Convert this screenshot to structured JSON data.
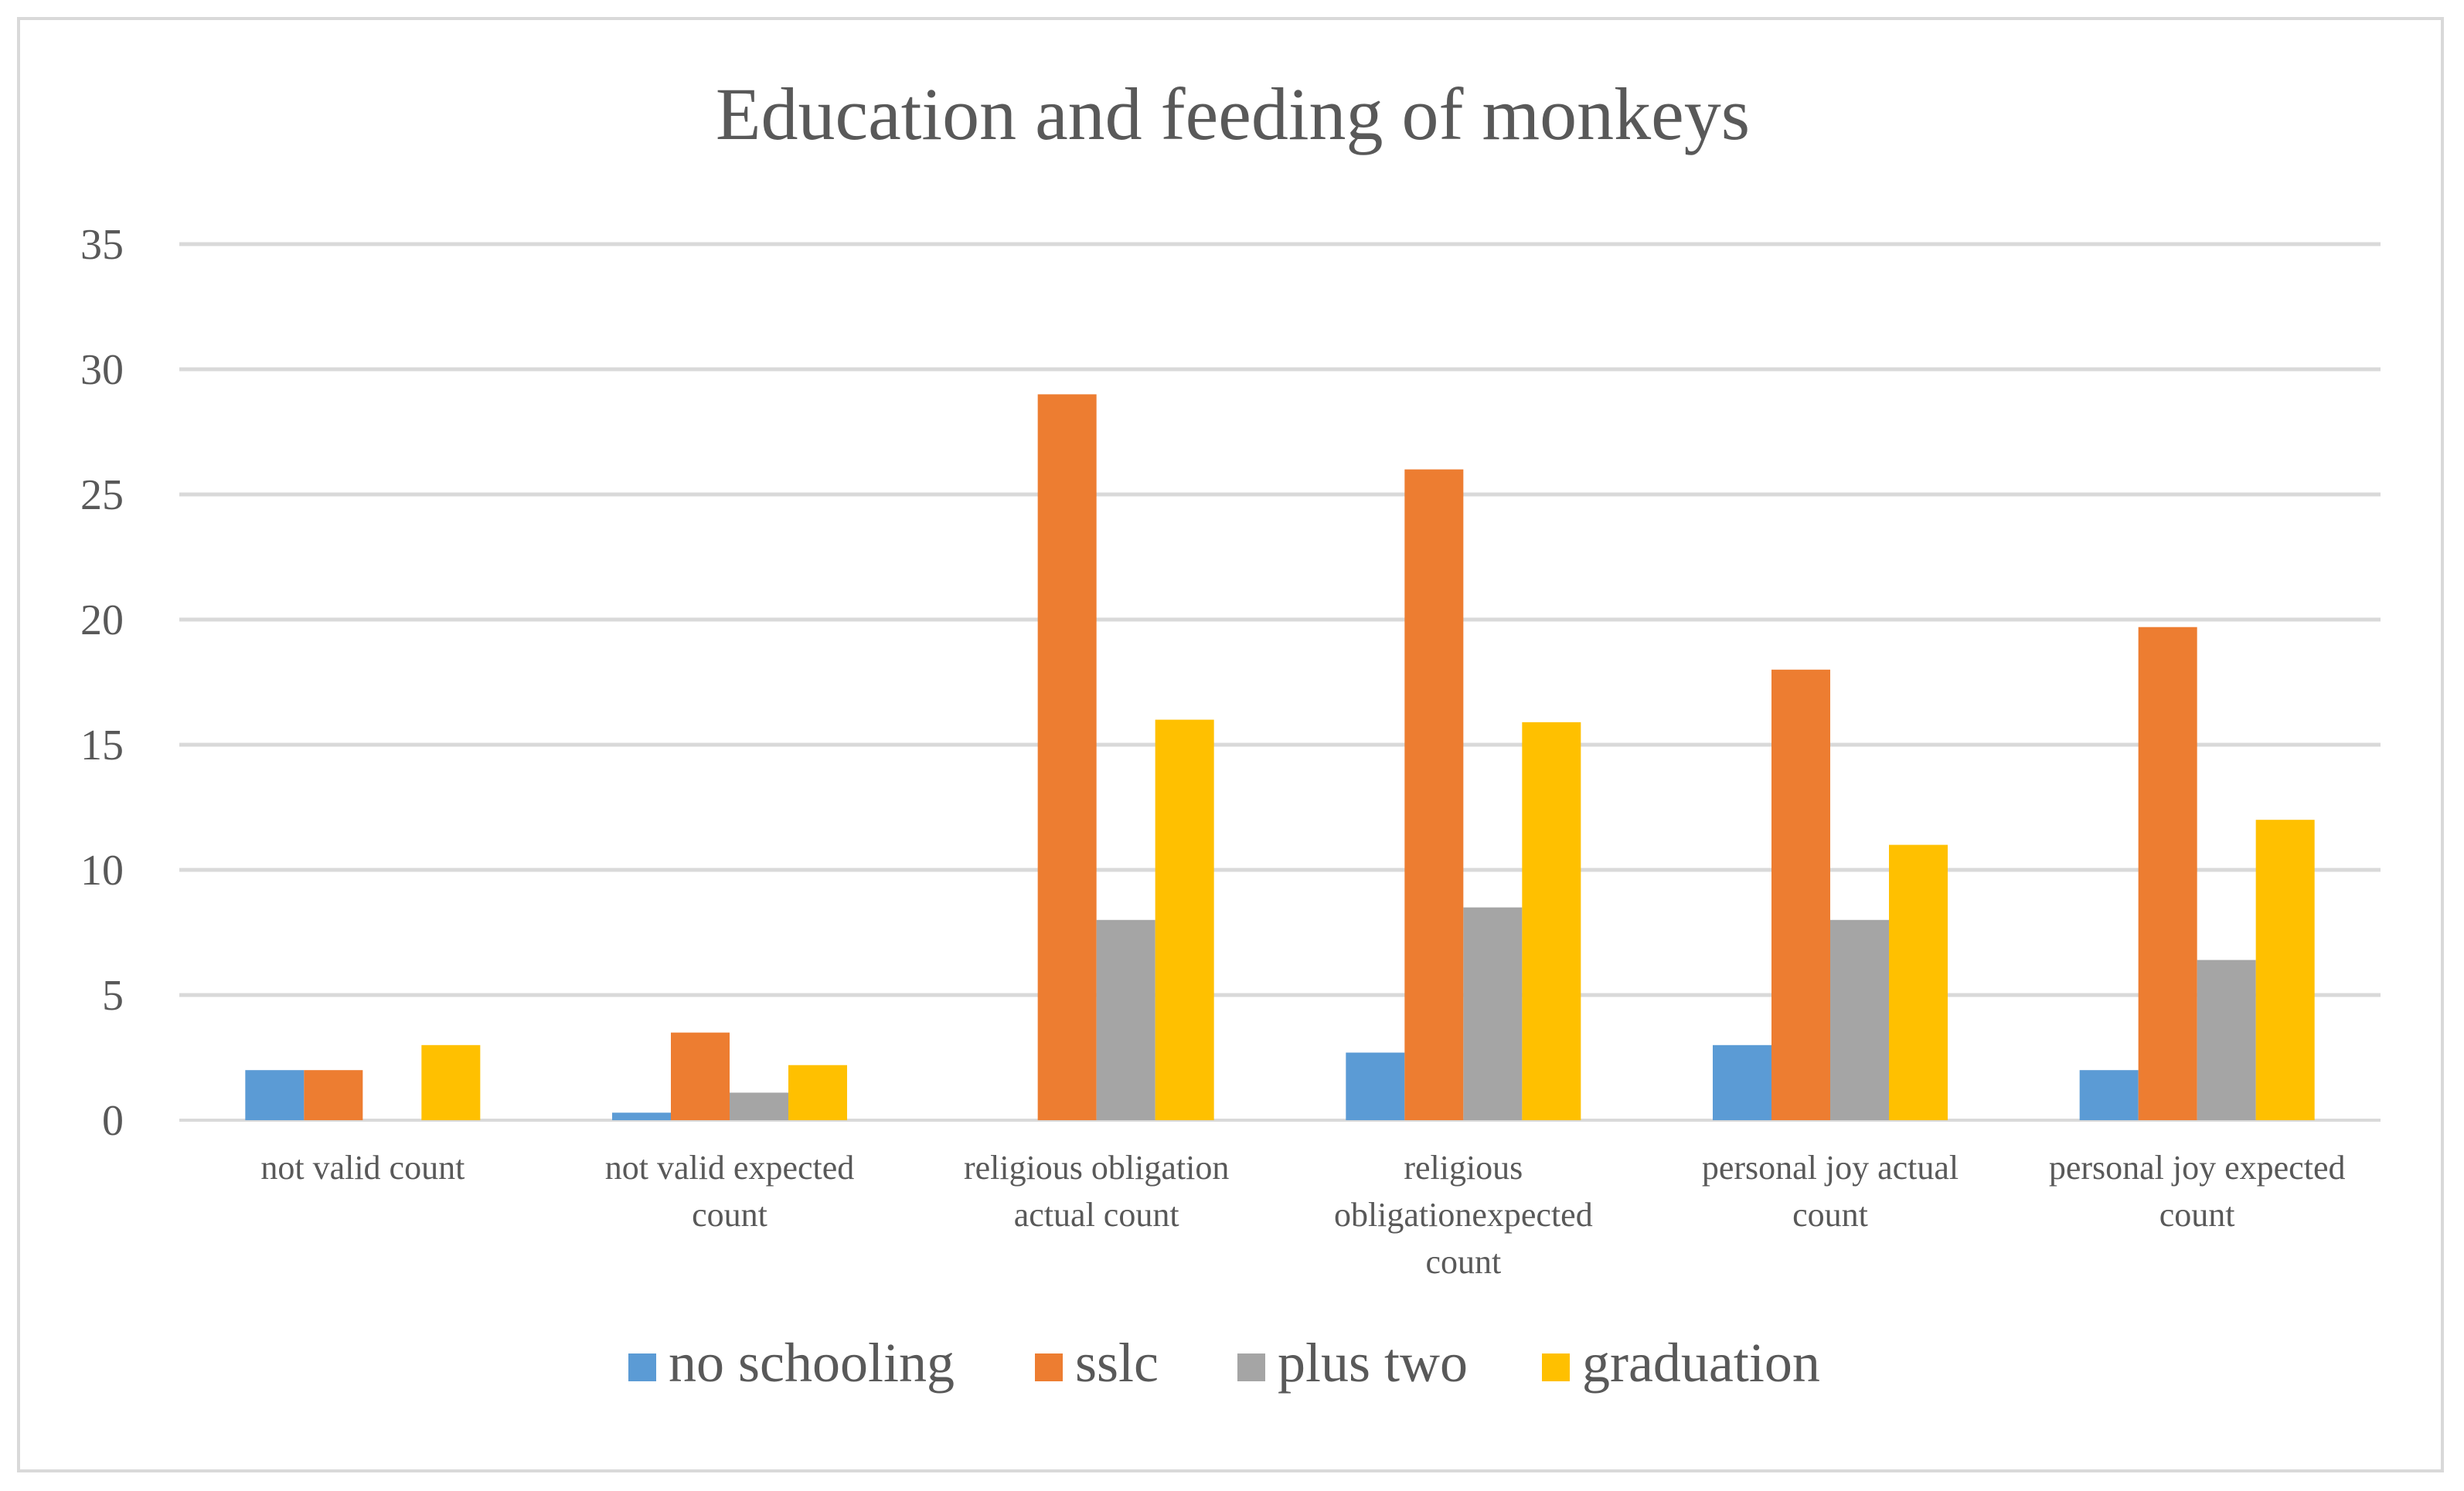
{
  "chart_data": {
    "type": "bar",
    "title": "Education and feeding of monkeys",
    "xlabel": "",
    "ylabel": "",
    "ylim": [
      0,
      35
    ],
    "yticks": [
      0,
      5,
      10,
      15,
      20,
      25,
      30,
      35
    ],
    "grid": true,
    "legend_position": "bottom",
    "categories": [
      [
        "not valid count"
      ],
      [
        "not valid expected",
        "count"
      ],
      [
        "religious obligation",
        "actual count"
      ],
      [
        "religious",
        "obligationexpected",
        "count"
      ],
      [
        "personal joy actual",
        "count"
      ],
      [
        "personal joy expected",
        "count"
      ]
    ],
    "series": [
      {
        "name": "no schooling",
        "color": "#5b9bd5",
        "values": [
          2,
          0.3,
          0,
          2.7,
          3,
          2
        ]
      },
      {
        "name": "sslc",
        "color": "#ed7d31",
        "values": [
          2,
          3.5,
          29,
          26,
          18,
          19.7
        ]
      },
      {
        "name": "plus two",
        "color": "#a5a5a5",
        "values": [
          0,
          1.1,
          8,
          8.5,
          8,
          6.4
        ]
      },
      {
        "name": "graduation",
        "color": "#ffc000",
        "values": [
          3,
          2.2,
          16,
          15.9,
          11,
          12
        ]
      }
    ]
  }
}
